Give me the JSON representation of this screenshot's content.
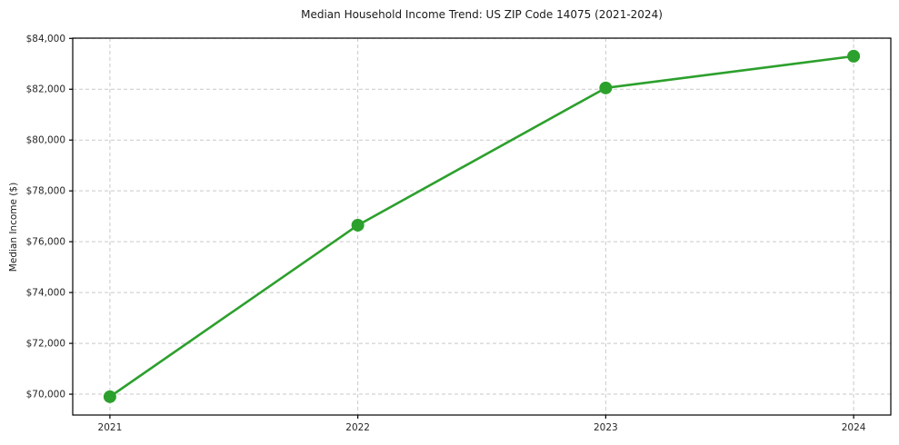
{
  "chart_data": {
    "type": "line",
    "title": "Median Household Income Trend: US ZIP Code 14075 (2021-2024)",
    "xlabel": "",
    "ylabel": "Median Income ($)",
    "categories": [
      "2021",
      "2022",
      "2023",
      "2024"
    ],
    "series": [
      {
        "name": "Median household income",
        "values": [
          69900,
          76650,
          82050,
          83300
        ],
        "color": "#2ca02c"
      }
    ],
    "ylim": [
      69180,
      84010
    ],
    "yticks": [
      {
        "value": 70000,
        "label": "$70,000"
      },
      {
        "value": 72000,
        "label": "$72,000"
      },
      {
        "value": 74000,
        "label": "$74,000"
      },
      {
        "value": 76000,
        "label": "$76,000"
      },
      {
        "value": 78000,
        "label": "$78,000"
      },
      {
        "value": 80000,
        "label": "$80,000"
      },
      {
        "value": 82000,
        "label": "$82,000"
      },
      {
        "value": 84000,
        "label": "$84,000"
      }
    ],
    "grid": true,
    "grid_style": "dashed",
    "legend": "none",
    "x_margin": 0.15,
    "colors": {
      "line": "#2ca02c",
      "grid": "#c9c9c9",
      "text": "#262626",
      "spine": "#000000",
      "background": "#ffffff"
    }
  }
}
